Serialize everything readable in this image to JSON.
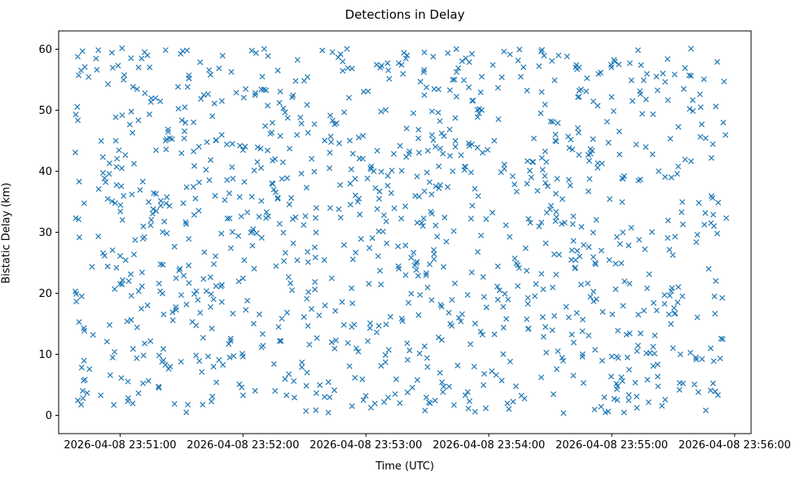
{
  "figure": {
    "background_color": "#ffffff",
    "spine_color": "#000000"
  },
  "chart_data": {
    "type": "scatter",
    "title": "Detections in Delay",
    "xlabel": "Time (UTC)",
    "ylabel": "Bistatic Delay (km)",
    "marker": "x",
    "marker_color": "#1f77b4",
    "legend": "none",
    "grid": false,
    "x_tick_labels": [
      "2026-04-08 23:51:00",
      "2026-04-08 23:52:00",
      "2026-04-08 23:53:00",
      "2026-04-08 23:54:00",
      "2026-04-08 23:55:00",
      "2026-04-08 23:56:00"
    ],
    "x_tick_seconds": [
      30,
      90,
      150,
      210,
      270,
      330
    ],
    "x_domain_seconds": [
      0,
      338
    ],
    "x_axis_origin": "2026-04-08 23:50:30",
    "y_ticks": [
      0,
      10,
      20,
      30,
      40,
      50,
      60
    ],
    "y_tick_labels": [
      "0",
      "10",
      "20",
      "30",
      "40",
      "50",
      "60"
    ],
    "y_domain": [
      -3,
      63
    ],
    "ylim_data": [
      0.3,
      60.2
    ],
    "points": {
      "distribution": "uniform_random",
      "count": 1150,
      "seed": 7,
      "x_seconds_range": [
        8,
        326
      ],
      "y_range": [
        0.3,
        60.2
      ]
    }
  }
}
